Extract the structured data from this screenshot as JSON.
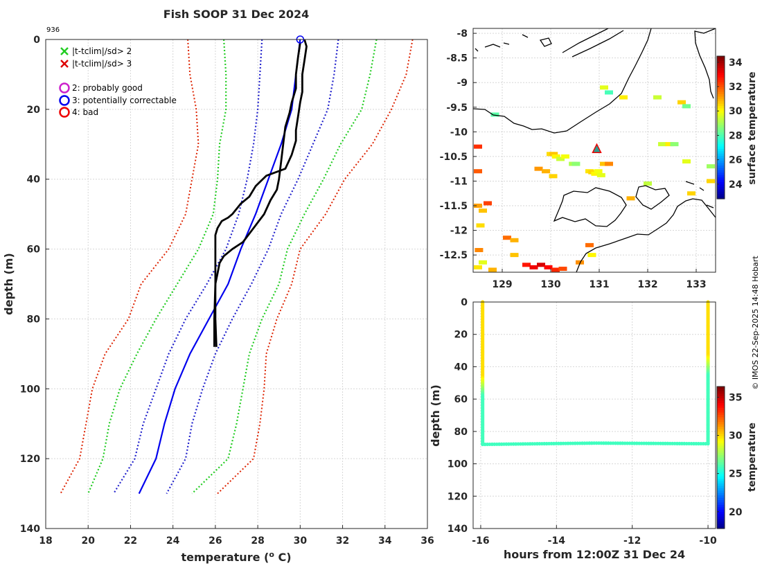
{
  "title": "Fish SOOP 31 Dec 2024",
  "profile_id": "936",
  "credit": "© IMOS 22-Sep-2025 14:48 Hobart",
  "legend": {
    "cross_green": "|t-tclim|/sd> 2",
    "cross_red": "|t-tclim|/sd> 3",
    "flag2": "2: probably good",
    "flag3": "3: potentially correctable",
    "flag4": "4: bad"
  },
  "colors": {
    "green_dot": "#22cc22",
    "red_dot": "#dd2200",
    "blue_dot": "#2222cc",
    "clim_mean": "#0000ee",
    "profile": "#000000",
    "flag2": "#cc22cc",
    "flag3": "#0000ee",
    "flag4": "#ee0000"
  },
  "chart_data": [
    {
      "id": "profile",
      "type": "line",
      "xlabel": "temperature (",
      "xlabel_sup": "o",
      "xlabel_end": " C)",
      "ylabel": "depth (m)",
      "xlim": [
        18,
        36
      ],
      "ylim": [
        0,
        140
      ],
      "xticks": [
        18,
        20,
        22,
        24,
        26,
        28,
        30,
        32,
        34,
        36
      ],
      "yticks": [
        0,
        20,
        40,
        60,
        80,
        100,
        120,
        140
      ],
      "grid": true,
      "series": [
        {
          "name": "clim -3sd",
          "style": "red-dotted",
          "points": [
            [
              24.7,
              0
            ],
            [
              24.8,
              10
            ],
            [
              25.1,
              20
            ],
            [
              25.2,
              30
            ],
            [
              24.9,
              40
            ],
            [
              24.6,
              50
            ],
            [
              23.8,
              60
            ],
            [
              22.5,
              70
            ],
            [
              21.9,
              80
            ],
            [
              20.8,
              90
            ],
            [
              20.2,
              100
            ],
            [
              19.9,
              110
            ],
            [
              19.6,
              120
            ],
            [
              18.7,
              130
            ]
          ]
        },
        {
          "name": "clim -2sd",
          "style": "green-dotted",
          "points": [
            [
              26.4,
              0
            ],
            [
              26.5,
              10
            ],
            [
              26.5,
              20
            ],
            [
              26.2,
              30
            ],
            [
              26.1,
              40
            ],
            [
              25.9,
              50
            ],
            [
              25.2,
              60
            ],
            [
              24.2,
              70
            ],
            [
              23.2,
              80
            ],
            [
              22.3,
              90
            ],
            [
              21.5,
              100
            ],
            [
              21.0,
              110
            ],
            [
              20.7,
              120
            ],
            [
              20.0,
              130
            ]
          ]
        },
        {
          "name": "clim -1sd",
          "style": "blue-dotted",
          "points": [
            [
              28.2,
              0
            ],
            [
              28.1,
              10
            ],
            [
              28.0,
              20
            ],
            [
              27.8,
              30
            ],
            [
              27.5,
              40
            ],
            [
              27.1,
              50
            ],
            [
              26.5,
              60
            ],
            [
              25.6,
              70
            ],
            [
              24.6,
              80
            ],
            [
              23.8,
              90
            ],
            [
              23.2,
              100
            ],
            [
              22.6,
              110
            ],
            [
              22.2,
              120
            ],
            [
              21.2,
              130
            ]
          ]
        },
        {
          "name": "clim mean",
          "style": "blue-solid",
          "points": [
            [
              30.0,
              0
            ],
            [
              29.8,
              10
            ],
            [
              29.6,
              20
            ],
            [
              29.1,
              30
            ],
            [
              28.5,
              40
            ],
            [
              27.9,
              50
            ],
            [
              27.2,
              60
            ],
            [
              26.6,
              70
            ],
            [
              25.7,
              80
            ],
            [
              24.8,
              90
            ],
            [
              24.1,
              100
            ],
            [
              23.6,
              110
            ],
            [
              23.2,
              120
            ],
            [
              22.4,
              130
            ]
          ]
        },
        {
          "name": "clim +1sd",
          "style": "blue-dotted",
          "points": [
            [
              31.8,
              0
            ],
            [
              31.6,
              10
            ],
            [
              31.3,
              20
            ],
            [
              30.6,
              30
            ],
            [
              29.9,
              40
            ],
            [
              29.1,
              50
            ],
            [
              28.5,
              60
            ],
            [
              27.7,
              70
            ],
            [
              26.8,
              80
            ],
            [
              26.0,
              90
            ],
            [
              25.4,
              100
            ],
            [
              24.9,
              110
            ],
            [
              24.6,
              120
            ],
            [
              23.7,
              130
            ]
          ]
        },
        {
          "name": "clim +2sd",
          "style": "green-dotted",
          "points": [
            [
              33.6,
              0
            ],
            [
              33.3,
              10
            ],
            [
              32.9,
              20
            ],
            [
              31.9,
              30
            ],
            [
              31.1,
              40
            ],
            [
              30.2,
              50
            ],
            [
              29.4,
              60
            ],
            [
              29.0,
              70
            ],
            [
              28.2,
              80
            ],
            [
              27.6,
              90
            ],
            [
              27.3,
              100
            ],
            [
              27.0,
              110
            ],
            [
              26.6,
              120
            ],
            [
              24.9,
              130
            ]
          ]
        },
        {
          "name": "clim +3sd",
          "style": "red-dotted",
          "points": [
            [
              35.3,
              0
            ],
            [
              35.0,
              10
            ],
            [
              34.3,
              20
            ],
            [
              33.4,
              30
            ],
            [
              32.1,
              40
            ],
            [
              31.2,
              50
            ],
            [
              30.0,
              60
            ],
            [
              29.6,
              70
            ],
            [
              28.9,
              80
            ],
            [
              28.4,
              90
            ],
            [
              28.3,
              100
            ],
            [
              28.1,
              110
            ],
            [
              27.8,
              120
            ],
            [
              26.1,
              130
            ]
          ]
        },
        {
          "name": "profile A",
          "style": "black-solid",
          "points": [
            [
              30.2,
              0
            ],
            [
              30.3,
              2
            ],
            [
              30.2,
              6
            ],
            [
              30.1,
              10
            ],
            [
              30.1,
              15
            ],
            [
              30.0,
              18
            ],
            [
              29.9,
              22
            ],
            [
              29.8,
              26
            ],
            [
              29.8,
              29
            ],
            [
              29.6,
              33
            ],
            [
              29.3,
              37
            ],
            [
              28.4,
              39
            ],
            [
              27.9,
              42
            ],
            [
              27.6,
              45
            ],
            [
              27.2,
              47
            ],
            [
              26.8,
              50
            ],
            [
              26.6,
              51
            ],
            [
              26.3,
              52
            ],
            [
              26.1,
              54
            ],
            [
              26.0,
              56
            ],
            [
              26.0,
              60
            ],
            [
              26.0,
              70
            ],
            [
              25.95,
              80
            ],
            [
              25.95,
              88
            ]
          ]
        },
        {
          "name": "profile B",
          "style": "black-solid",
          "points": [
            [
              30.0,
              1
            ],
            [
              29.9,
              5
            ],
            [
              29.8,
              10
            ],
            [
              29.8,
              14
            ],
            [
              29.6,
              18
            ],
            [
              29.5,
              21
            ],
            [
              29.3,
              25
            ],
            [
              29.2,
              30
            ],
            [
              29.1,
              35
            ],
            [
              29.0,
              40
            ],
            [
              28.9,
              43
            ],
            [
              28.6,
              46
            ],
            [
              28.3,
              50
            ],
            [
              27.8,
              54
            ],
            [
              27.3,
              58
            ],
            [
              26.8,
              60
            ],
            [
              26.4,
              62
            ],
            [
              26.2,
              64
            ],
            [
              26.1,
              67
            ],
            [
              26.0,
              70
            ],
            [
              26.0,
              80
            ],
            [
              26.05,
              88
            ]
          ]
        }
      ]
    },
    {
      "id": "map",
      "type": "heatmap",
      "xlim": [
        128.4,
        133.4
      ],
      "ylim": [
        -12.85,
        -7.9
      ],
      "xticks": [
        129,
        130,
        131,
        132,
        133
      ],
      "yticks": [
        -8,
        -8.5,
        -9,
        -9.5,
        -10,
        -10.5,
        -11,
        -11.5,
        -12,
        -12.5
      ],
      "colorbar_label": "surface temperature",
      "colorbar_ticks": [
        24,
        26,
        28,
        30,
        32,
        34
      ],
      "colorbar_range": [
        22.8,
        34.5
      ],
      "station_marker": [
        130.95,
        -10.35
      ],
      "cells": [
        {
          "lon": 130.0,
          "lat": -10.45,
          "v": 30.5
        },
        {
          "lon": 130.06,
          "lat": -10.45,
          "v": 30.8
        },
        {
          "lon": 130.11,
          "lat": -10.5,
          "v": 30.2
        },
        {
          "lon": 130.2,
          "lat": -10.55,
          "v": 29.5
        },
        {
          "lon": 130.3,
          "lat": -10.5,
          "v": 30.0
        },
        {
          "lon": 130.46,
          "lat": -10.65,
          "v": 29.2
        },
        {
          "lon": 130.52,
          "lat": -10.65,
          "v": 28.8
        },
        {
          "lon": 130.8,
          "lat": -10.8,
          "v": 30.4
        },
        {
          "lon": 130.86,
          "lat": -10.82,
          "v": 30.6
        },
        {
          "lon": 130.92,
          "lat": -10.85,
          "v": 30.2
        },
        {
          "lon": 130.98,
          "lat": -10.8,
          "v": 30.0
        },
        {
          "lon": 131.04,
          "lat": -10.88,
          "v": 29.8
        },
        {
          "lon": 131.1,
          "lat": -10.65,
          "v": 30.8
        },
        {
          "lon": 131.2,
          "lat": -10.65,
          "v": 31.5
        },
        {
          "lon": 129.75,
          "lat": -10.75,
          "v": 31.3
        },
        {
          "lon": 129.9,
          "lat": -10.8,
          "v": 31.0
        },
        {
          "lon": 130.05,
          "lat": -10.9,
          "v": 30.6
        },
        {
          "lon": 128.5,
          "lat": -10.3,
          "v": 32.5
        },
        {
          "lon": 128.5,
          "lat": -10.8,
          "v": 32.0
        },
        {
          "lon": 128.5,
          "lat": -11.5,
          "v": 31.2
        },
        {
          "lon": 128.6,
          "lat": -11.6,
          "v": 30.8
        },
        {
          "lon": 128.7,
          "lat": -11.45,
          "v": 32.3
        },
        {
          "lon": 128.55,
          "lat": -11.9,
          "v": 30.5
        },
        {
          "lon": 128.52,
          "lat": -12.4,
          "v": 31.5
        },
        {
          "lon": 128.6,
          "lat": -12.65,
          "v": 29.8
        },
        {
          "lon": 128.5,
          "lat": -12.75,
          "v": 30.4
        },
        {
          "lon": 128.8,
          "lat": -12.8,
          "v": 31.0
        },
        {
          "lon": 129.5,
          "lat": -12.7,
          "v": 32.8
        },
        {
          "lon": 129.65,
          "lat": -12.75,
          "v": 33.2
        },
        {
          "lon": 129.8,
          "lat": -12.7,
          "v": 33.5
        },
        {
          "lon": 129.95,
          "lat": -12.75,
          "v": 33.0
        },
        {
          "lon": 130.1,
          "lat": -12.8,
          "v": 32.6
        },
        {
          "lon": 130.25,
          "lat": -12.78,
          "v": 32.2
        },
        {
          "lon": 129.1,
          "lat": -12.15,
          "v": 31.8
        },
        {
          "lon": 129.25,
          "lat": -12.2,
          "v": 31.0
        },
        {
          "lon": 129.25,
          "lat": -12.5,
          "v": 30.8
        },
        {
          "lon": 130.6,
          "lat": -12.65,
          "v": 31.4
        },
        {
          "lon": 130.8,
          "lat": -12.3,
          "v": 31.8
        },
        {
          "lon": 130.85,
          "lat": -12.5,
          "v": 30.2
        },
        {
          "lon": 131.1,
          "lat": -9.1,
          "v": 29.8
        },
        {
          "lon": 131.2,
          "lat": -9.2,
          "v": 28.0
        },
        {
          "lon": 131.5,
          "lat": -9.3,
          "v": 30.3
        },
        {
          "lon": 132.2,
          "lat": -9.3,
          "v": 29.5
        },
        {
          "lon": 132.7,
          "lat": -9.4,
          "v": 30.6
        },
        {
          "lon": 132.8,
          "lat": -9.48,
          "v": 28.5
        },
        {
          "lon": 128.85,
          "lat": -9.65,
          "v": 28.2
        },
        {
          "lon": 132.3,
          "lat": -10.25,
          "v": 29.5
        },
        {
          "lon": 132.45,
          "lat": -10.25,
          "v": 30.3
        },
        {
          "lon": 132.55,
          "lat": -10.25,
          "v": 28.8
        },
        {
          "lon": 132.8,
          "lat": -10.6,
          "v": 29.8
        },
        {
          "lon": 133.3,
          "lat": -10.7,
          "v": 29.0
        },
        {
          "lon": 133.3,
          "lat": -11.0,
          "v": 30.6
        },
        {
          "lon": 132.0,
          "lat": -11.05,
          "v": 29.4
        },
        {
          "lon": 131.65,
          "lat": -11.35,
          "v": 31.0
        },
        {
          "lon": 132.9,
          "lat": -11.25,
          "v": 30.6
        }
      ]
    },
    {
      "id": "timeseries",
      "type": "scatter",
      "xlabel": "hours from 12:00Z 31 Dec 24",
      "ylabel": "depth (m)",
      "xlim": [
        -16.2,
        -9.8
      ],
      "ylim": [
        0,
        140
      ],
      "xticks": [
        -16,
        -14,
        -12,
        -10
      ],
      "yticks": [
        0,
        20,
        40,
        60,
        80,
        100,
        120,
        140
      ],
      "colorbar_label": "temperature",
      "colorbar_ticks": [
        20,
        25,
        30,
        35
      ],
      "colorbar_range": [
        17.8,
        36.4
      ],
      "descent_left": {
        "hour": -15.95,
        "top_temp": 30.0,
        "bottom_temp": 26.0,
        "transition_depth": 58
      },
      "descent_right": {
        "hour": -10.0,
        "top_temp": 30.0,
        "bottom_temp": 26.0,
        "transition_depth": 45
      },
      "bottom": {
        "from_hour": -15.95,
        "to_hour": -10.0,
        "depth_start": 88,
        "depth_mid": 87.2,
        "depth_end": 87.6,
        "temp": 25.95
      }
    }
  ]
}
